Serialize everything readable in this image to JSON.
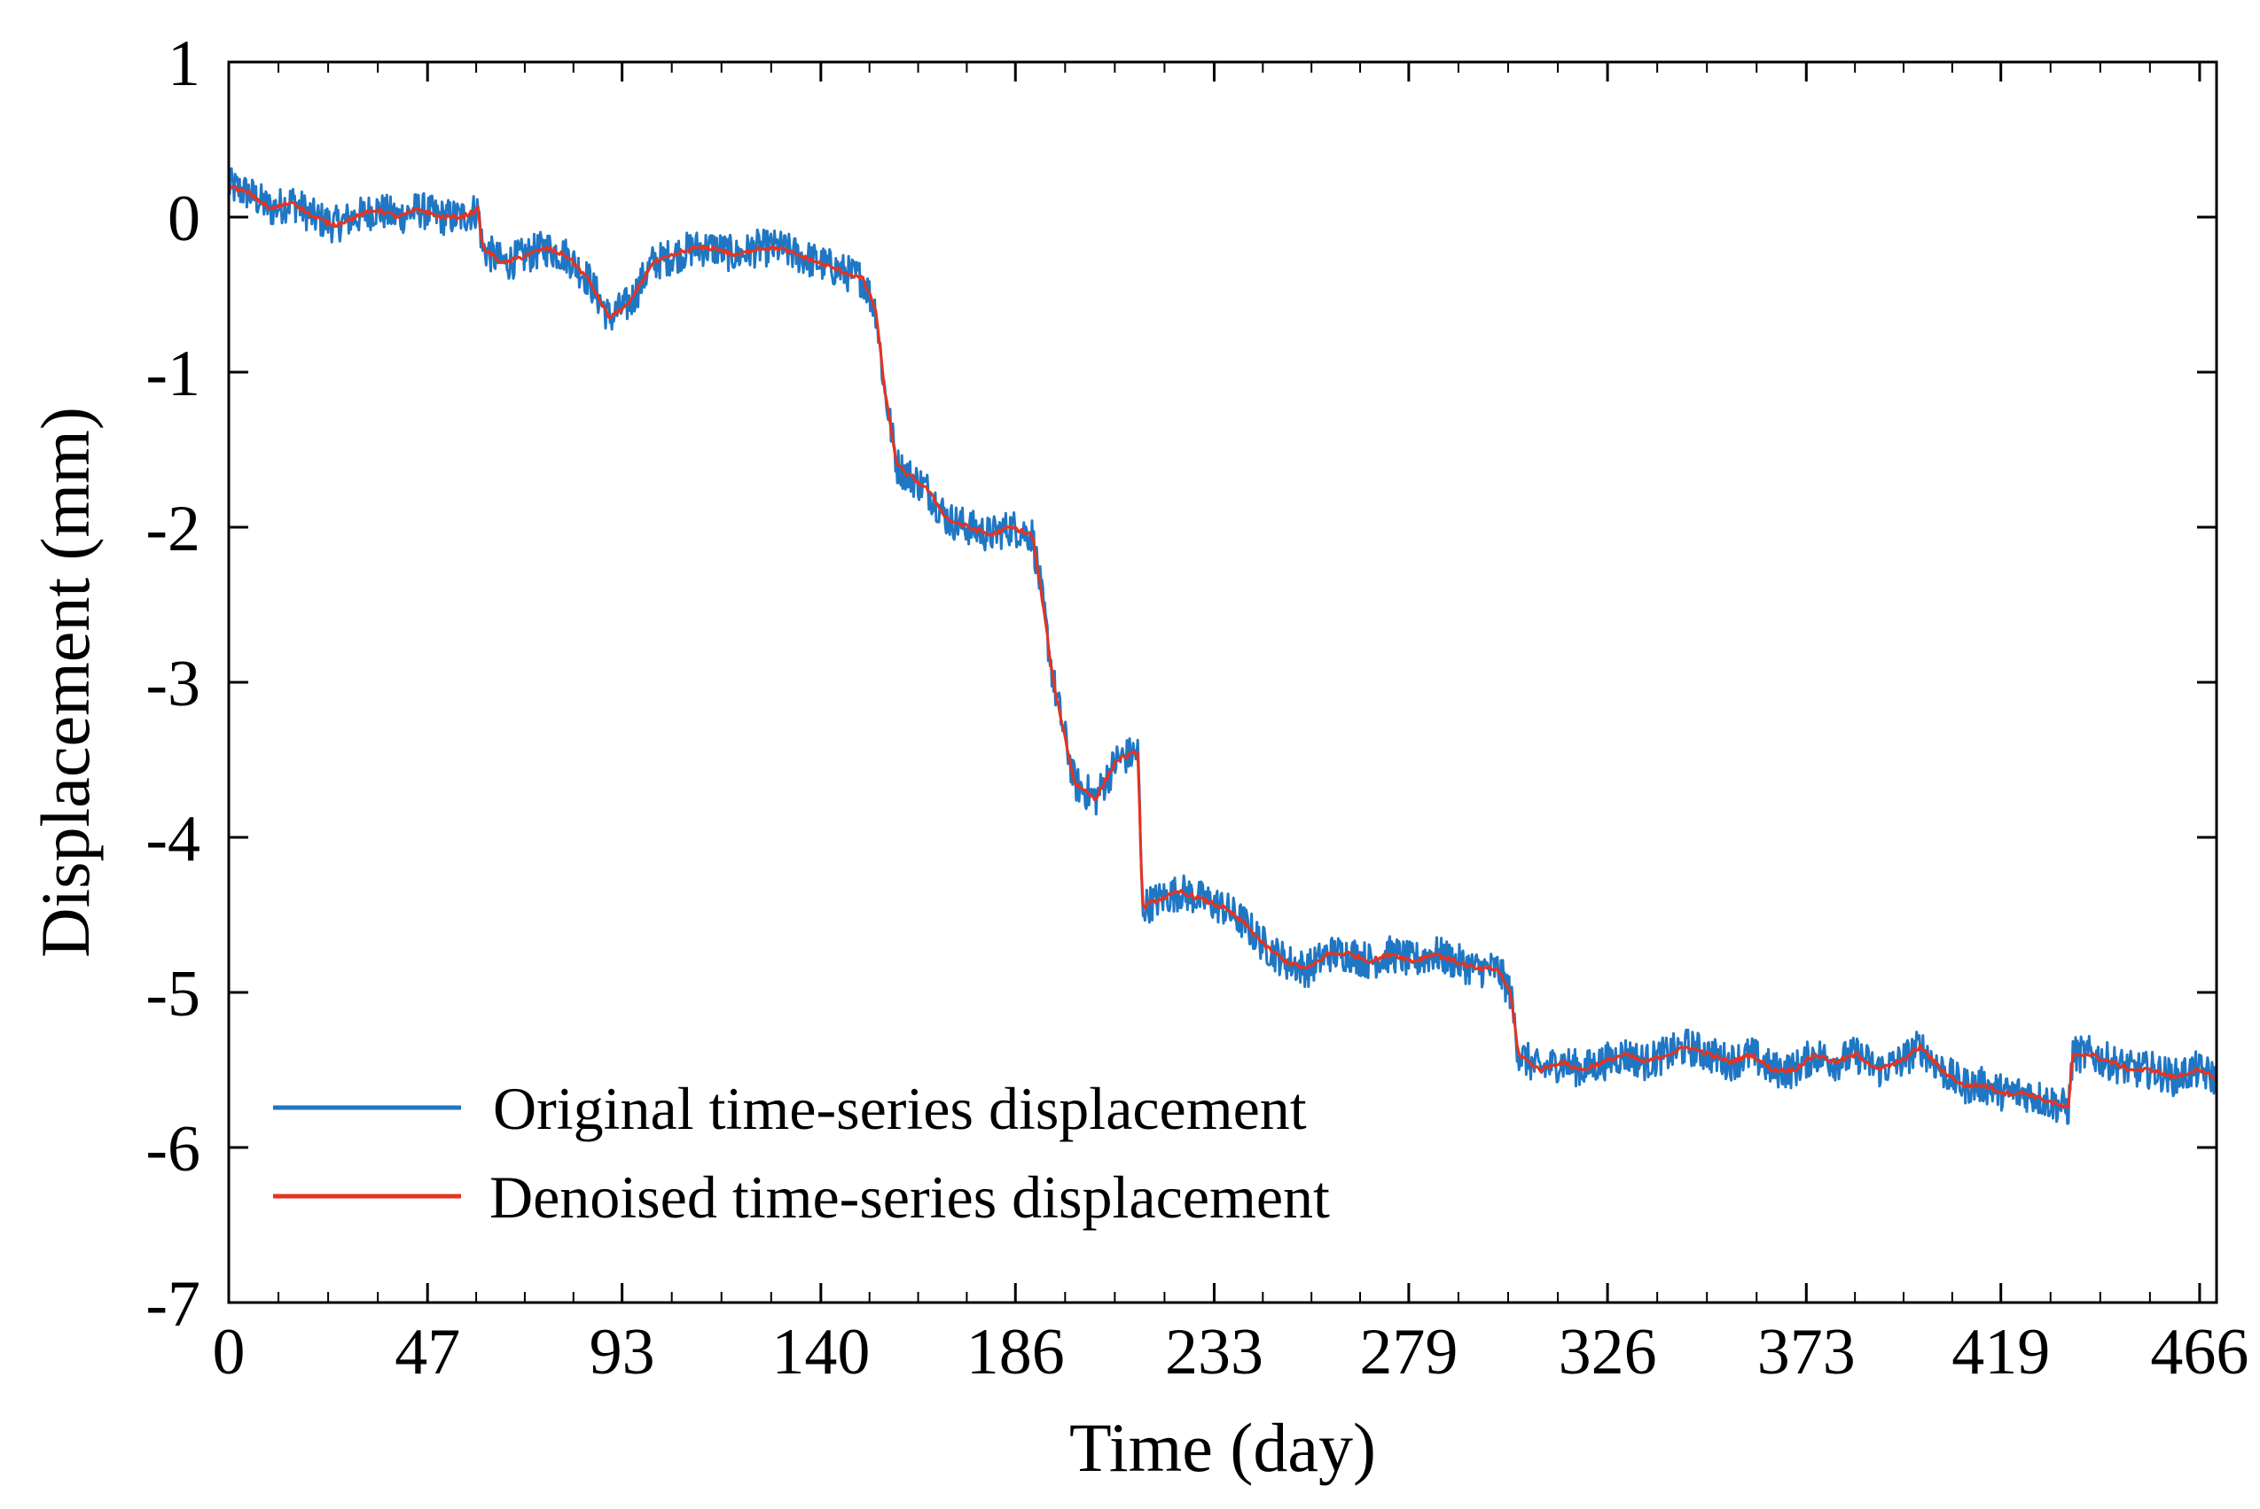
{
  "colors": {
    "original": "#1f77c4",
    "denoised": "#e8321e",
    "axis": "#000000"
  },
  "chart_data": {
    "type": "line",
    "title": "",
    "xlabel": "Time (day)",
    "ylabel": "Displacement (mm)",
    "xlim": [
      0,
      470
    ],
    "ylim": [
      -7,
      1
    ],
    "x_ticks": [
      0,
      47,
      93,
      140,
      186,
      233,
      279,
      326,
      373,
      419,
      466
    ],
    "x_tick_labels": [
      "0",
      "47",
      "93",
      "140",
      "186",
      "233",
      "279",
      "326",
      "373",
      "419",
      "466"
    ],
    "y_ticks": [
      1,
      0,
      -1,
      -2,
      -3,
      -4,
      -5,
      -6,
      -7
    ],
    "y_tick_labels": [
      "1",
      "0",
      "-1",
      "-2",
      "-3",
      "-4",
      "-5",
      "-6",
      "-7"
    ],
    "legend_position": "bottom-left",
    "series": [
      {
        "name": "Original time-series displacement",
        "color": "#1f77c4",
        "noise_amplitude_mm": 0.12,
        "x": [
          0,
          5,
          10,
          15,
          20,
          25,
          30,
          35,
          40,
          45,
          50,
          55,
          59,
          60,
          65,
          70,
          75,
          80,
          85,
          90,
          95,
          100,
          105,
          110,
          115,
          120,
          125,
          130,
          135,
          140,
          145,
          150,
          153,
          155,
          158,
          160,
          165,
          170,
          175,
          180,
          185,
          190,
          192,
          195,
          200,
          205,
          210,
          215,
          216,
          220,
          225,
          230,
          235,
          240,
          245,
          250,
          255,
          260,
          265,
          270,
          275,
          280,
          285,
          290,
          295,
          300,
          303,
          305,
          310,
          315,
          320,
          325,
          330,
          335,
          340,
          345,
          350,
          355,
          360,
          365,
          370,
          375,
          380,
          385,
          390,
          395,
          400,
          405,
          410,
          415,
          420,
          425,
          430,
          435,
          436,
          440,
          445,
          450,
          455,
          460,
          465,
          470
        ],
        "y": [
          0.2,
          0.15,
          0.05,
          0.1,
          0.0,
          -0.05,
          0.0,
          0.05,
          0.0,
          0.05,
          0.0,
          0.0,
          0.05,
          -0.2,
          -0.3,
          -0.25,
          -0.2,
          -0.25,
          -0.4,
          -0.65,
          -0.55,
          -0.3,
          -0.25,
          -0.2,
          -0.2,
          -0.25,
          -0.2,
          -0.2,
          -0.25,
          -0.3,
          -0.35,
          -0.4,
          -0.6,
          -1.1,
          -1.6,
          -1.65,
          -1.75,
          -1.95,
          -2.0,
          -2.05,
          -2.0,
          -2.05,
          -2.4,
          -3.0,
          -3.65,
          -3.75,
          -3.5,
          -3.45,
          -4.45,
          -4.4,
          -4.35,
          -4.4,
          -4.45,
          -4.55,
          -4.7,
          -4.8,
          -4.85,
          -4.75,
          -4.75,
          -4.8,
          -4.75,
          -4.8,
          -4.75,
          -4.8,
          -4.85,
          -4.85,
          -5.0,
          -5.4,
          -5.5,
          -5.45,
          -5.5,
          -5.45,
          -5.4,
          -5.45,
          -5.4,
          -5.35,
          -5.4,
          -5.45,
          -5.4,
          -5.5,
          -5.5,
          -5.4,
          -5.45,
          -5.4,
          -5.5,
          -5.45,
          -5.35,
          -5.5,
          -5.6,
          -5.6,
          -5.65,
          -5.65,
          -5.7,
          -5.75,
          -5.4,
          -5.4,
          -5.45,
          -5.5,
          -5.5,
          -5.55,
          -5.5,
          -5.55
        ]
      },
      {
        "name": "Denoised time-series displacement",
        "color": "#e8321e",
        "x": [
          0,
          5,
          10,
          15,
          20,
          25,
          30,
          35,
          40,
          45,
          50,
          55,
          59,
          60,
          65,
          70,
          75,
          80,
          85,
          90,
          95,
          100,
          105,
          110,
          115,
          120,
          125,
          130,
          135,
          140,
          145,
          150,
          153,
          155,
          158,
          160,
          165,
          170,
          175,
          180,
          185,
          190,
          192,
          195,
          200,
          205,
          210,
          215,
          216,
          220,
          225,
          230,
          235,
          240,
          245,
          250,
          255,
          260,
          265,
          270,
          275,
          280,
          285,
          290,
          295,
          300,
          303,
          305,
          310,
          315,
          320,
          325,
          330,
          335,
          340,
          345,
          350,
          355,
          360,
          365,
          370,
          375,
          380,
          385,
          390,
          395,
          400,
          405,
          410,
          415,
          420,
          425,
          430,
          435,
          436,
          440,
          445,
          450,
          455,
          460,
          465,
          470
        ],
        "y": [
          0.2,
          0.15,
          0.05,
          0.1,
          0.0,
          -0.05,
          0.0,
          0.05,
          0.0,
          0.05,
          0.0,
          0.0,
          0.05,
          -0.2,
          -0.3,
          -0.25,
          -0.2,
          -0.25,
          -0.4,
          -0.65,
          -0.55,
          -0.3,
          -0.25,
          -0.2,
          -0.2,
          -0.25,
          -0.2,
          -0.2,
          -0.25,
          -0.3,
          -0.35,
          -0.4,
          -0.6,
          -1.1,
          -1.6,
          -1.65,
          -1.75,
          -1.95,
          -2.0,
          -2.05,
          -2.0,
          -2.05,
          -2.4,
          -3.0,
          -3.65,
          -3.75,
          -3.5,
          -3.45,
          -4.45,
          -4.4,
          -4.35,
          -4.4,
          -4.45,
          -4.55,
          -4.7,
          -4.8,
          -4.85,
          -4.75,
          -4.75,
          -4.8,
          -4.75,
          -4.8,
          -4.75,
          -4.8,
          -4.85,
          -4.85,
          -5.0,
          -5.4,
          -5.5,
          -5.45,
          -5.5,
          -5.45,
          -5.4,
          -5.45,
          -5.4,
          -5.35,
          -5.4,
          -5.45,
          -5.4,
          -5.5,
          -5.5,
          -5.4,
          -5.45,
          -5.4,
          -5.5,
          -5.45,
          -5.35,
          -5.5,
          -5.6,
          -5.6,
          -5.65,
          -5.65,
          -5.7,
          -5.75,
          -5.4,
          -5.4,
          -5.45,
          -5.5,
          -5.5,
          -5.55,
          -5.5,
          -5.55
        ]
      }
    ]
  }
}
